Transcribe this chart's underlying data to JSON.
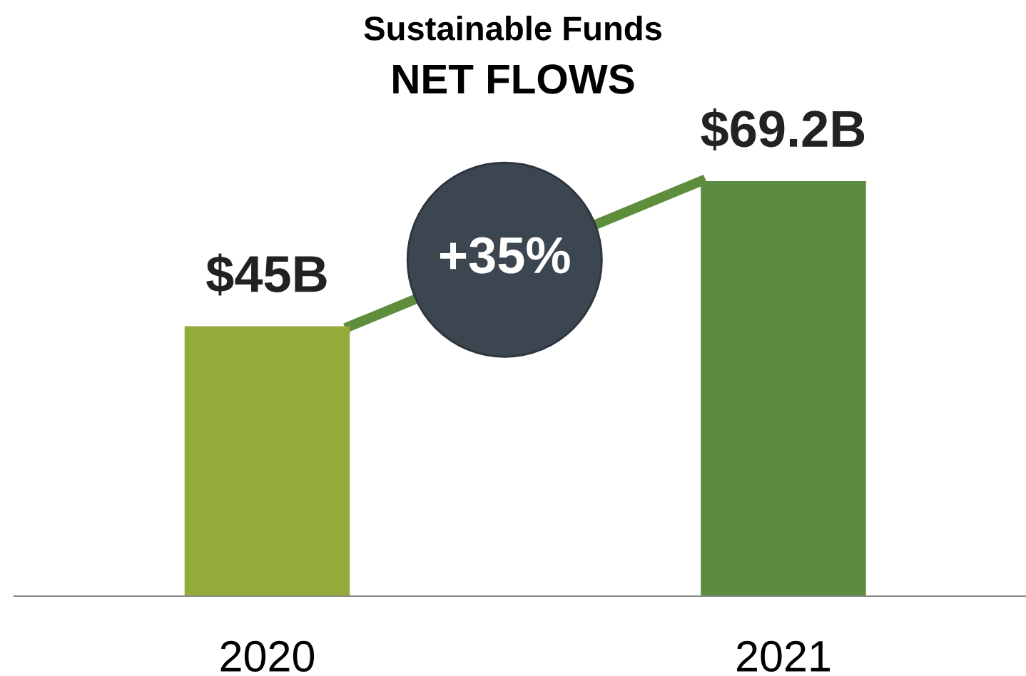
{
  "chart_data": {
    "type": "bar",
    "title": "Sustainable Funds",
    "subtitle": "NET FLOWS",
    "categories": [
      "2020",
      "2021"
    ],
    "series": [
      {
        "colors": [
          "#93ab3a",
          "#5b8c42"
        ],
        "values": [
          45,
          69.2
        ],
        "value_labels": [
          "$45B",
          "$69.2B"
        ]
      }
    ],
    "annotations": [
      "+35%"
    ],
    "grid": false,
    "legend": false
  }
}
